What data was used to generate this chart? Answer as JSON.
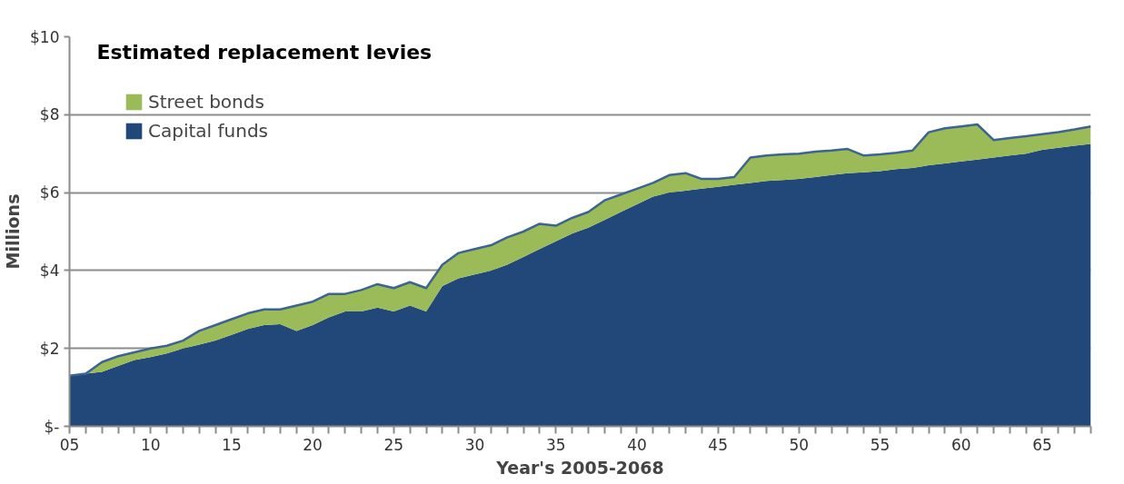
{
  "chart_data": {
    "type": "area",
    "title": "Estimated replacement levies",
    "xlabel": "Year's 2005-2068",
    "ylabel": "Millions",
    "categories": [
      "05",
      null,
      null,
      null,
      null,
      "10",
      null,
      null,
      null,
      null,
      "15",
      null,
      null,
      null,
      null,
      "20",
      null,
      null,
      null,
      null,
      "25",
      null,
      null,
      null,
      null,
      "30",
      null,
      null,
      null,
      null,
      "35",
      null,
      null,
      null,
      null,
      "40",
      null,
      null,
      null,
      null,
      "45",
      null,
      null,
      null,
      null,
      "50",
      null,
      null,
      null,
      null,
      "55",
      null,
      null,
      null,
      null,
      "60",
      null,
      null,
      null,
      null,
      "65",
      null,
      null,
      null
    ],
    "stacked": true,
    "series": [
      {
        "name": "Capital funds",
        "color": "#214878",
        "values": [
          1.3,
          1.35,
          1.4,
          1.55,
          1.7,
          1.78,
          1.87,
          2.0,
          2.1,
          2.2,
          2.35,
          2.5,
          2.6,
          2.62,
          2.45,
          2.6,
          2.8,
          2.95,
          2.95,
          3.05,
          2.95,
          3.1,
          2.95,
          3.6,
          3.8,
          3.9,
          4.0,
          4.15,
          4.35,
          4.55,
          4.75,
          4.95,
          5.1,
          5.3,
          5.5,
          5.7,
          5.9,
          6.0,
          6.05,
          6.1,
          6.15,
          6.2,
          6.25,
          6.3,
          6.32,
          6.35,
          6.4,
          6.45,
          6.5,
          6.52,
          6.55,
          6.6,
          6.63,
          6.7,
          6.75,
          6.8,
          6.85,
          6.9,
          6.95,
          7.0,
          7.1,
          7.15,
          7.2,
          7.25
        ]
      },
      {
        "name": "Street bonds",
        "color": "#9bbb59",
        "values": [
          0,
          0,
          0.25,
          0.25,
          0.2,
          0.22,
          0.2,
          0.2,
          0.35,
          0.4,
          0.4,
          0.4,
          0.4,
          0.38,
          0.65,
          0.6,
          0.6,
          0.45,
          0.55,
          0.6,
          0.6,
          0.6,
          0.6,
          0.55,
          0.65,
          0.65,
          0.65,
          0.7,
          0.65,
          0.65,
          0.4,
          0.4,
          0.4,
          0.5,
          0.45,
          0.4,
          0.35,
          0.45,
          0.45,
          0.25,
          0.2,
          0.2,
          0.65,
          0.65,
          0.66,
          0.65,
          0.65,
          0.63,
          0.62,
          0.43,
          0.43,
          0.42,
          0.45,
          0.85,
          0.9,
          0.9,
          0.9,
          0.45,
          0.45,
          0.45,
          0.4,
          0.4,
          0.42,
          0.45
        ]
      }
    ],
    "ylim": [
      0,
      10
    ],
    "yticks": [
      {
        "value": 0,
        "label": "$-"
      },
      {
        "value": 2,
        "label": "$2"
      },
      {
        "value": 4,
        "label": "$4"
      },
      {
        "value": 6,
        "label": "$6"
      },
      {
        "value": 8,
        "label": "$8"
      },
      {
        "value": 10,
        "label": "$10"
      }
    ],
    "grid": "y",
    "legend": "top left"
  }
}
